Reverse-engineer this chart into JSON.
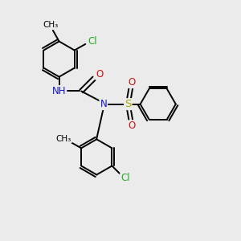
{
  "bg_color": "#ebebeb",
  "bond_color": "#000000",
  "bond_width": 1.4,
  "atom_colors": {
    "C": "#000000",
    "H": "#606060",
    "N": "#1414cc",
    "O": "#cc1414",
    "S": "#aaaa00",
    "Cl": "#22aa22"
  },
  "font_size": 8.5,
  "fig_size": [
    3.0,
    3.0
  ],
  "dpi": 100,
  "xlim": [
    -0.2,
    6.8
  ],
  "ylim": [
    -3.2,
    3.2
  ]
}
